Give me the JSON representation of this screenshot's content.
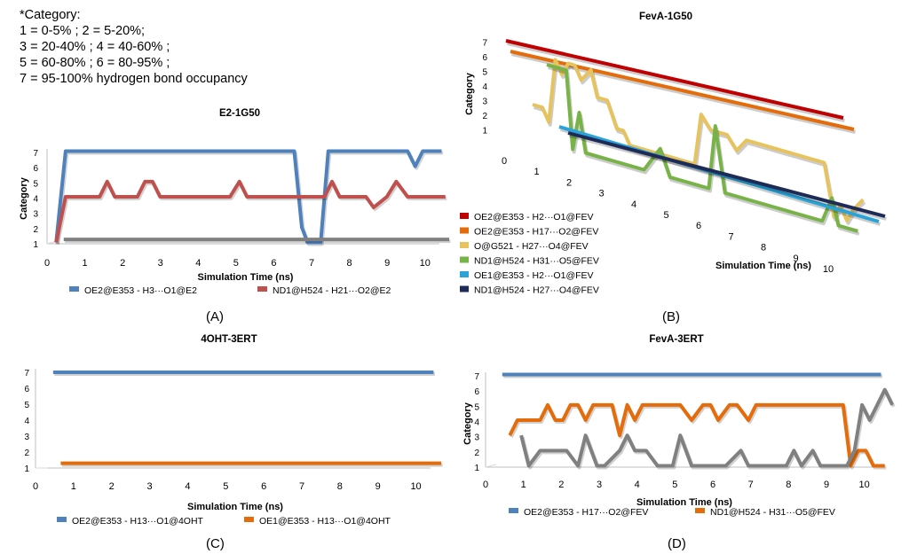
{
  "note": {
    "lines": [
      "*Category:",
      "1 = 0-5% ; 2 = 5-20%;",
      "3 = 20-40% ; 4 = 40-60% ;",
      "5 = 60-80% ; 6 = 80-95% ;",
      "7 = 95-100% hydrogen bond occupancy"
    ]
  },
  "panel_labels": {
    "a": "(A)",
    "b": "(B)",
    "c": "(C)",
    "d": "(D)"
  },
  "chart_data": [
    {
      "id": "A",
      "type": "line",
      "title": "E2-1G50",
      "xlabel": "Simulation Time (ns)",
      "ylabel": "Category",
      "xticks": [
        "0",
        "1",
        "2",
        "3",
        "4",
        "5",
        "6",
        "7",
        "8",
        "9",
        "10"
      ],
      "yticks": [
        "1",
        "2",
        "3",
        "4",
        "5",
        "6",
        "7"
      ],
      "xlim": [
        0,
        10.5
      ],
      "ylim": [
        1,
        7
      ],
      "series": [
        {
          "name": "OE2@E353 - H3···O1@E2",
          "color": "#4f81bd",
          "x": [
            0.1,
            0.35,
            0.55,
            1,
            2,
            3,
            4,
            5,
            6,
            6.4,
            6.6,
            6.75,
            7.0,
            7.1,
            7.3,
            7.5,
            8,
            9,
            9.4,
            9.6,
            9.8,
            10.3
          ],
          "y": [
            1,
            7,
            7,
            7,
            7,
            7,
            7,
            7,
            7,
            7,
            2,
            1,
            1,
            1,
            7,
            7,
            7,
            7,
            7,
            6,
            7,
            7
          ]
        },
        {
          "name": "ND1@H524 - H21···O2@E2",
          "color": "#c0504d",
          "x": [
            0.1,
            0.35,
            0.55,
            1,
            1.25,
            1.45,
            1.65,
            2,
            2.25,
            2.45,
            2.65,
            2.85,
            3,
            4,
            4.7,
            4.95,
            5.15,
            5.5,
            6,
            7,
            7.2,
            7.4,
            7.6,
            8,
            8.3,
            8.5,
            8.85,
            9.1,
            9.4,
            10,
            10.4
          ],
          "y": [
            1,
            4,
            4,
            4,
            4,
            5,
            4,
            4,
            4,
            5,
            5,
            4,
            4,
            4,
            4,
            5,
            4,
            4,
            4,
            4,
            4,
            5,
            4,
            4,
            4,
            3.3,
            4,
            5,
            4,
            4,
            4
          ]
        },
        {
          "name": "",
          "color": "#808080",
          "x": [
            0.3,
            10.5
          ],
          "y": [
            1.2,
            1.2
          ]
        }
      ]
    },
    {
      "id": "B",
      "type": "line",
      "title": "FevA-1G50",
      "xlabel": "Simulation Time (ns)",
      "ylabel": "Category",
      "xticks": [
        "0",
        "1",
        "2",
        "3",
        "4",
        "5",
        "6",
        "7",
        "8",
        "9",
        "10"
      ],
      "yticks": [
        "1",
        "2",
        "3",
        "4",
        "5",
        "6",
        "7"
      ],
      "xlim": [
        0,
        10
      ],
      "ylim": [
        0,
        7
      ],
      "series": [
        {
          "name": "OE2@E353 - H2···O1@FEV",
          "color": "#c00000",
          "depth": 0,
          "x": [
            0.2,
            10
          ],
          "y": [
            7,
            7
          ]
        },
        {
          "name": "OE2@E353 - H17···O2@FEV",
          "color": "#e46c0a",
          "depth": 1,
          "x": [
            0.2,
            10
          ],
          "y": [
            7,
            7
          ]
        },
        {
          "name": "O@G521 - H27···O4@FEV",
          "color": "#e6c35c",
          "depth": 2,
          "x": [
            0.0,
            0.3,
            0.5,
            0.7,
            0.9,
            1.1,
            1.3,
            1.5,
            1.8,
            2.0,
            2.3,
            2.6,
            2.8,
            3.0,
            3.5,
            4.0,
            4.5,
            5.0,
            5.2,
            5.5,
            6.0,
            6.3,
            6.6,
            6.9,
            7.2,
            8.0,
            8.5,
            9.0,
            9.3,
            9.5,
            9.7,
            9.9,
            10.2
          ],
          "y": [
            3,
            3,
            2,
            7,
            6,
            7,
            7,
            6,
            7,
            5,
            5,
            3,
            3,
            2,
            2,
            2,
            2,
            2,
            6,
            5,
            5,
            4,
            5,
            5,
            5,
            5,
            5,
            5,
            1,
            2,
            1,
            2,
            3
          ]
        },
        {
          "name": "ND1@H524 - H31···O5@FEV",
          "color": "#77b346",
          "depth": 3,
          "x": [
            0.0,
            0.3,
            0.6,
            0.8,
            1.0,
            1.2,
            1.4,
            1.6,
            2.0,
            3.0,
            3.5,
            3.8,
            4.0,
            4.5,
            5.0,
            5.2,
            5.5,
            6.0,
            7.0,
            8.0,
            8.5,
            8.8,
            9.0,
            9.3,
            9.6
          ],
          "y": [
            7,
            7,
            7,
            1,
            4,
            1,
            1,
            1,
            1,
            1,
            3,
            1,
            1,
            1,
            1,
            6,
            1,
            1,
            1,
            1,
            1,
            3,
            1,
            1,
            1
          ]
        },
        {
          "name": "OE1@E353 - H2···O1@FEV",
          "color": "#2aa3d8",
          "depth": 4,
          "x": [
            0.2,
            10
          ],
          "y": [
            1,
            1
          ]
        },
        {
          "name": "ND1@H524 - H27···O4@FEV",
          "color": "#1f2b57",
          "depth": 5,
          "x": [
            0.2,
            10
          ],
          "y": [
            1,
            1
          ]
        }
      ]
    },
    {
      "id": "C",
      "type": "line",
      "title": "4OHT-3ERT",
      "xlabel": "Simulation Time (ns)",
      "ylabel": "",
      "xticks": [
        "0",
        "1",
        "2",
        "3",
        "4",
        "5",
        "6",
        "7",
        "8",
        "9",
        "10"
      ],
      "yticks": [
        "1",
        "2",
        "3",
        "4",
        "5",
        "6",
        "7"
      ],
      "xlim": [
        0,
        10.5
      ],
      "ylim": [
        1,
        7
      ],
      "series": [
        {
          "name": "OE2@E353 - H13···O1@4OHT",
          "color": "#4f81bd",
          "x": [
            0.3,
            10.3
          ],
          "y": [
            7,
            7
          ]
        },
        {
          "name": "OE1@E353 - H13···O1@4OHT",
          "color": "#e46c0a",
          "x": [
            0.5,
            10.5
          ],
          "y": [
            1.3,
            1.3
          ]
        }
      ]
    },
    {
      "id": "D",
      "type": "line",
      "title": "FevA-3ERT",
      "xlabel": "Simulation Time (ns)",
      "ylabel": "Category",
      "xticks": [
        "0",
        "1",
        "2",
        "3",
        "4",
        "5",
        "6",
        "7",
        "8",
        "9",
        "10"
      ],
      "yticks": [
        "1",
        "2",
        "3",
        "4",
        "5",
        "6",
        "7"
      ],
      "xlim": [
        0,
        10.5
      ],
      "ylim": [
        1,
        7
      ],
      "series": [
        {
          "name": "OE2@E353 - H17···O2@FEV",
          "color": "#4f81bd",
          "x": [
            0.3,
            10.3
          ],
          "y": [
            7,
            7
          ]
        },
        {
          "name": "ND1@H524 - H31···O5@FEV",
          "color": "#e46c0a",
          "x": [
            0.5,
            0.7,
            1.0,
            1.3,
            1.5,
            1.7,
            1.9,
            2.1,
            2.3,
            2.5,
            2.7,
            2.9,
            3.2,
            3.4,
            3.6,
            3.8,
            4.0,
            4.3,
            4.6,
            5.0,
            5.3,
            5.6,
            5.8,
            6.0,
            6.3,
            6.5,
            6.8,
            7.0,
            7.3,
            7.6,
            8.0,
            8.5,
            9.0,
            9.3,
            9.5,
            9.7,
            9.9,
            10.1,
            10.4
          ],
          "y": [
            3,
            4,
            4,
            4,
            5,
            4,
            4,
            5,
            5,
            4,
            5,
            5,
            5,
            3,
            5,
            4,
            5,
            5,
            5,
            5,
            4,
            5,
            5,
            4,
            5,
            5,
            4,
            5,
            5,
            5,
            5,
            5,
            5,
            5,
            1,
            2,
            2,
            1,
            1
          ]
        },
        {
          "name": "",
          "color": "#808080",
          "x": [
            0.8,
            1.0,
            1.3,
            1.6,
            2.0,
            2.3,
            2.5,
            2.8,
            3.0,
            3.4,
            3.6,
            3.8,
            4.1,
            4.4,
            4.8,
            5.0,
            5.3,
            5.7,
            6.2,
            6.6,
            6.8,
            7.3,
            7.8,
            8.0,
            8.2,
            8.5,
            8.7,
            8.9,
            9.4,
            9.6,
            9.8,
            10.0,
            10.2,
            10.4,
            10.6
          ],
          "y": [
            3,
            1,
            2,
            2,
            2,
            1,
            3,
            1,
            1,
            2,
            3,
            2,
            2,
            1,
            1,
            3,
            1,
            1,
            1,
            2,
            1,
            1,
            1,
            2,
            1,
            2,
            1,
            1,
            1,
            2,
            5,
            4,
            5,
            6,
            5
          ]
        }
      ]
    }
  ]
}
